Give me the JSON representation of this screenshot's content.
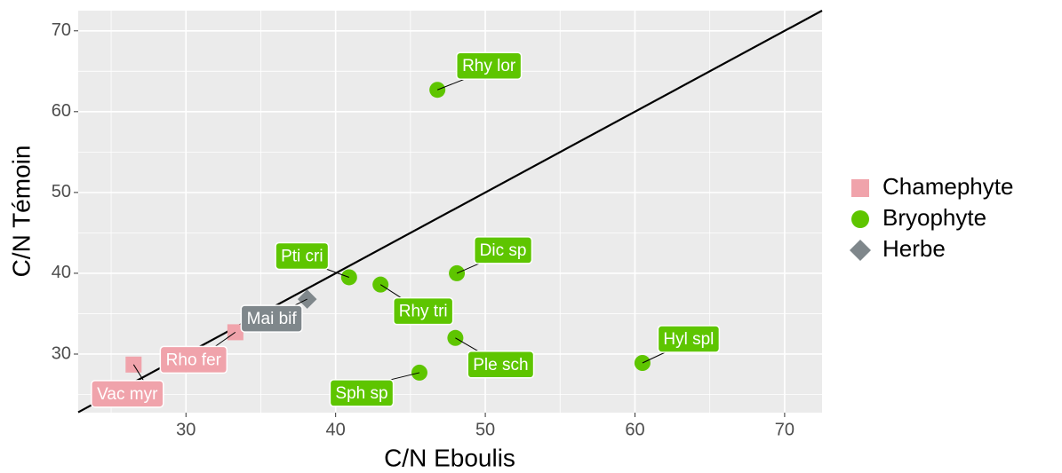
{
  "chart_data": {
    "type": "scatter",
    "x_label": "C/N Eboulis",
    "y_label": "C/N Témoin",
    "xlim": [
      22.8,
      72.5
    ],
    "ylim": [
      22.75,
      72.5
    ],
    "xticks": [
      30,
      40,
      50,
      60,
      70
    ],
    "yticks": [
      30,
      40,
      50,
      60,
      70
    ],
    "xminor": [
      25,
      35,
      45,
      55,
      65
    ],
    "yminor": [
      25,
      35,
      45,
      55,
      65
    ],
    "grid": true,
    "identity_line": true,
    "legend": "right",
    "series": [
      {
        "name": "Chamephyte",
        "color": "#f0a3ab",
        "shape": "square",
        "x": [
          26.5,
          33.3
        ],
        "y": [
          28.7,
          32.7
        ],
        "labels": [
          "Vac myr",
          "Rho fer"
        ]
      },
      {
        "name": "Bryophyte",
        "color": "#5ec500",
        "shape": "circle",
        "x": [
          46.8,
          40.9,
          43.0,
          48.1,
          48.0,
          45.6,
          60.5
        ],
        "y": [
          62.7,
          39.5,
          38.6,
          40.0,
          32.0,
          27.7,
          28.9
        ],
        "labels": [
          "Rhy lor",
          "Pti cri",
          "Rhy tri",
          "Dic sp",
          "Ple sch",
          "Sph sp",
          "Hyl spl"
        ]
      },
      {
        "name": "Herbe",
        "color": "#7f878b",
        "shape": "diamond",
        "x": [
          38.1
        ],
        "y": [
          36.8
        ],
        "labels": [
          "Mai bif"
        ]
      }
    ]
  }
}
